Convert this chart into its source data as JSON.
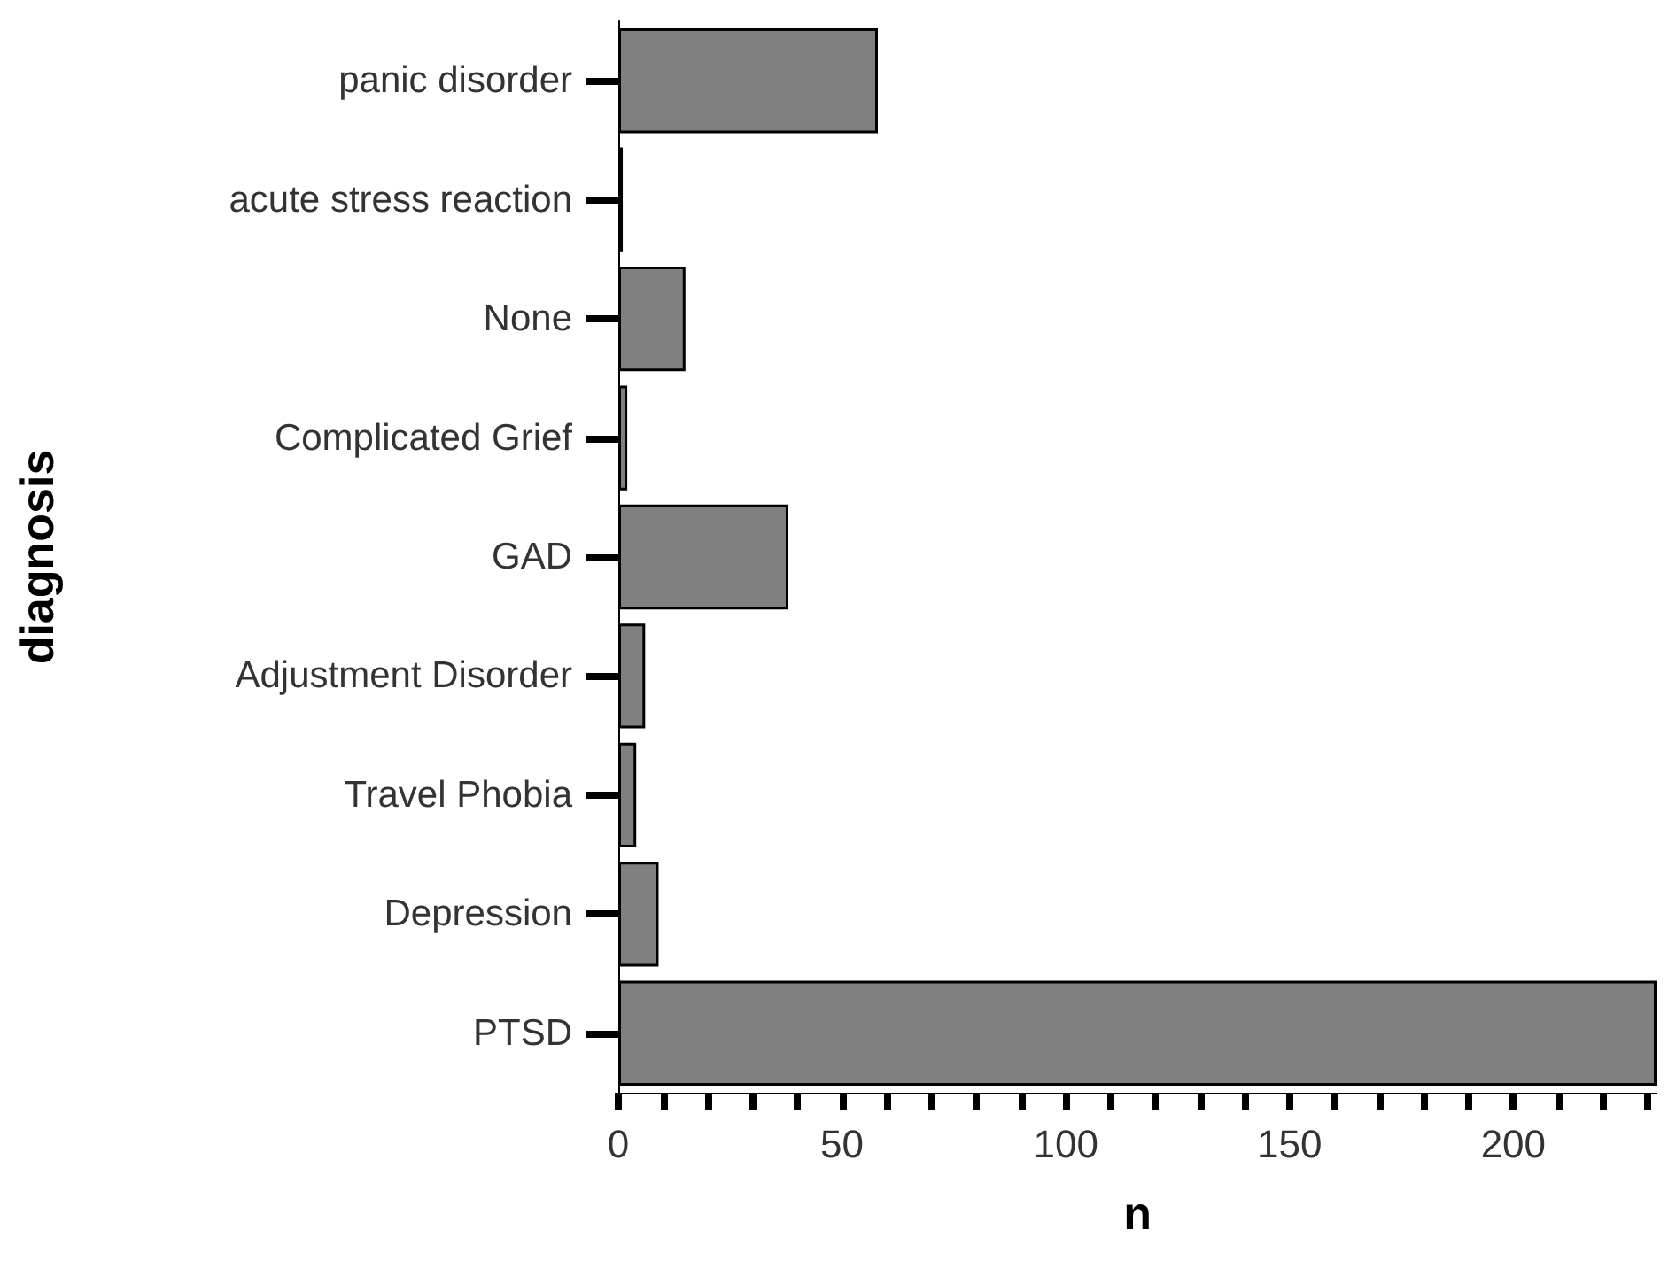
{
  "chart_data": {
    "type": "bar",
    "orientation": "horizontal",
    "xlabel": "n",
    "ylabel": "diagnosis",
    "categories": [
      "panic disorder",
      "acute stress reaction",
      "None",
      "Complicated Grief",
      "GAD",
      "Adjustment Disorder",
      "Travel Phobia",
      "Depression",
      "PTSD"
    ],
    "values": [
      58,
      1,
      15,
      2,
      38,
      6,
      4,
      9,
      232
    ],
    "color": "#808080",
    "xlim": [
      0,
      232
    ],
    "xticks": [
      0,
      {
        "value": 10,
        "label": null
      },
      {
        "value": 20,
        "label": null
      },
      {
        "value": 30,
        "label": null
      },
      {
        "value": 40,
        "label": null
      },
      50,
      {
        "value": 60,
        "label": null
      },
      {
        "value": 70,
        "label": null
      },
      {
        "value": 80,
        "label": null
      },
      {
        "value": 90,
        "label": null
      },
      100,
      {
        "value": 110,
        "label": null
      },
      {
        "value": 120,
        "label": null
      },
      {
        "value": 130,
        "label": null
      },
      {
        "value": 140,
        "label": null
      },
      150,
      {
        "value": 160,
        "label": null
      },
      {
        "value": 170,
        "label": null
      },
      {
        "value": 180,
        "label": null
      },
      {
        "value": 190,
        "label": null
      },
      200,
      {
        "value": 210,
        "label": null
      },
      {
        "value": 220,
        "label": null
      },
      {
        "value": 230,
        "label": null
      }
    ],
    "grid": false
  }
}
